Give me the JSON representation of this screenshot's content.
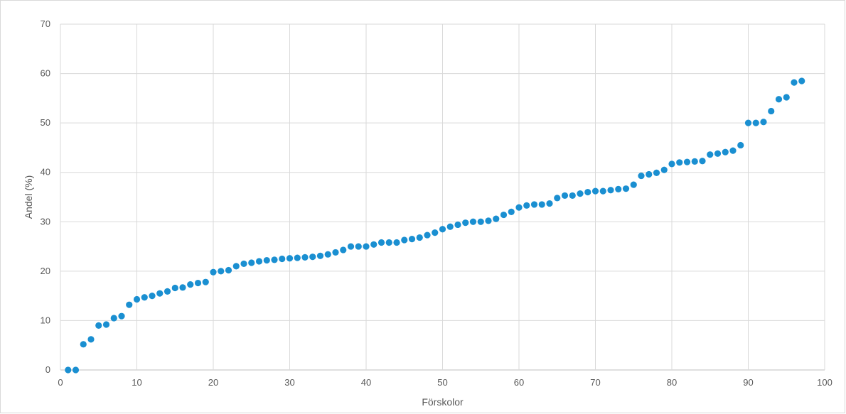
{
  "chart_data": {
    "type": "scatter",
    "title": "",
    "xlabel": "Förskolor",
    "ylabel": "Andel (%)",
    "xlim": [
      0,
      100
    ],
    "ylim": [
      0,
      70
    ],
    "xticks": [
      0,
      10,
      20,
      30,
      40,
      50,
      60,
      70,
      80,
      90,
      100
    ],
    "yticks": [
      0,
      10,
      20,
      30,
      40,
      50,
      60,
      70
    ],
    "grid": true,
    "legend": "none",
    "marker_color": "#1a8fd1",
    "x": [
      1,
      2,
      3,
      4,
      5,
      6,
      7,
      8,
      9,
      10,
      11,
      12,
      13,
      14,
      15,
      16,
      17,
      18,
      19,
      20,
      21,
      22,
      23,
      24,
      25,
      26,
      27,
      28,
      29,
      30,
      31,
      32,
      33,
      34,
      35,
      36,
      37,
      38,
      39,
      40,
      41,
      42,
      43,
      44,
      45,
      46,
      47,
      48,
      49,
      50,
      51,
      52,
      53,
      54,
      55,
      56,
      57,
      58,
      59,
      60,
      61,
      62,
      63,
      64,
      65,
      66,
      67,
      68,
      69,
      70,
      71,
      72,
      73,
      74,
      75,
      76,
      77,
      78,
      79,
      80,
      81,
      82,
      83,
      84,
      85,
      86,
      87,
      88,
      89,
      90,
      91,
      92,
      93,
      94,
      95,
      96,
      97
    ],
    "y": [
      0,
      0,
      5.2,
      6.2,
      9,
      9.2,
      10.5,
      10.9,
      13.2,
      14.3,
      14.7,
      15,
      15.5,
      15.9,
      16.6,
      16.7,
      17.3,
      17.6,
      17.8,
      19.8,
      20,
      20.2,
      21,
      21.5,
      21.7,
      22,
      22.2,
      22.3,
      22.5,
      22.6,
      22.7,
      22.8,
      22.9,
      23.1,
      23.4,
      23.8,
      24.3,
      25,
      25,
      25,
      25.4,
      25.8,
      25.8,
      25.8,
      26.3,
      26.5,
      26.8,
      27.3,
      27.8,
      28.5,
      29,
      29.4,
      29.8,
      30,
      30,
      30.2,
      30.6,
      31.4,
      32,
      32.9,
      33.3,
      33.5,
      33.5,
      33.7,
      34.8,
      35.3,
      35.3,
      35.7,
      36,
      36.2,
      36.2,
      36.4,
      36.6,
      36.7,
      37.5,
      39.3,
      39.6,
      39.9,
      40.5,
      41.7,
      42,
      42.1,
      42.2,
      42.3,
      43.6,
      43.8,
      44.1,
      44.4,
      45.5,
      50,
      50,
      50.2,
      52.4,
      54.8,
      55.2,
      58.2,
      58.5
    ]
  }
}
